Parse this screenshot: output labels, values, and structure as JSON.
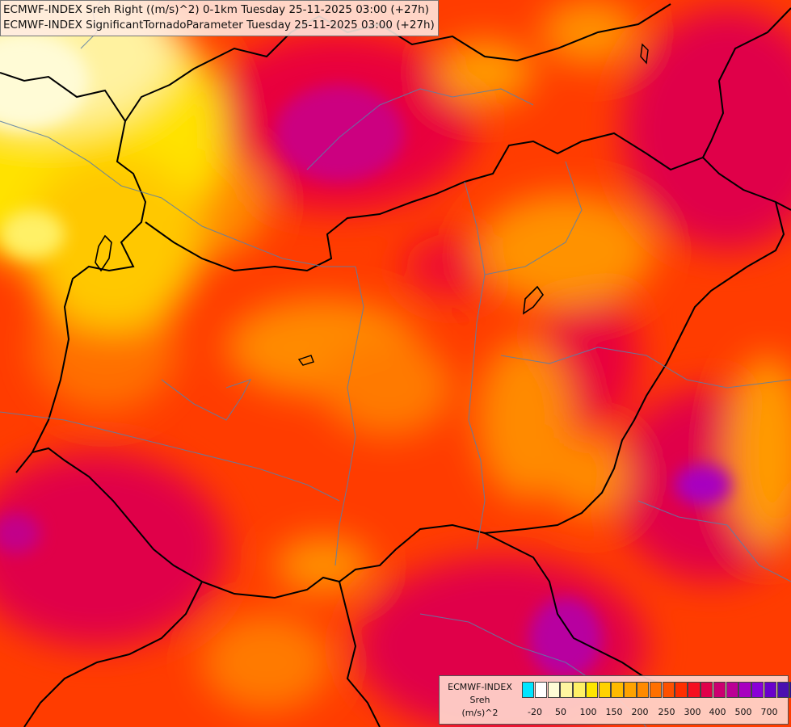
{
  "title": {
    "line1": "ECMWF-INDEX Sreh Right ((m/s)^2) 0-1km Tuesday 25-11-2025 03:00 (+27h)",
    "line2": "ECMWF-INDEX SignificantTornadoParameter Tuesday 25-11-2025 03:00 (+27h)"
  },
  "legend": {
    "title_line1": "ECMWF-INDEX",
    "title_line2": "Sreh",
    "title_line3": "(m/s)^2",
    "colors": [
      "#00e5ff",
      "#ffffff",
      "#fffbd6",
      "#fff5a0",
      "#fff066",
      "#ffe600",
      "#ffd200",
      "#ffba00",
      "#ffa200",
      "#ff8a00",
      "#ff7000",
      "#ff5000",
      "#ff2e00",
      "#f50e20",
      "#e0004a",
      "#cc0070",
      "#bb0095",
      "#a800c0",
      "#8a00d8",
      "#6a00cc",
      "#4a10b0",
      "#2a1090",
      "#101070"
    ],
    "tick_labels": [
      "-20",
      "50",
      "100",
      "150",
      "200",
      "250",
      "300",
      "400",
      "500",
      "700"
    ]
  },
  "chart_data": {
    "type": "heatmap",
    "title": "ECMWF-INDEX Sreh Right ((m/s)^2) 0-1km Tuesday 25-11-2025 03:00 (+27h)",
    "subtitle": "ECMWF-INDEX SignificantTornadoParameter Tuesday 25-11-2025 03:00 (+27h)",
    "variable": "Sreh",
    "units": "(m/s)^2",
    "scale_ticks": [
      -20,
      50,
      100,
      150,
      200,
      250,
      300,
      400,
      500,
      700
    ],
    "regions": [
      {
        "area": "north-west corner",
        "approx_value": 110
      },
      {
        "area": "north-central",
        "approx_value": 400
      },
      {
        "area": "central",
        "approx_value": 230
      },
      {
        "area": "east",
        "approx_value": 300
      },
      {
        "area": "south-east",
        "approx_value": 440
      },
      {
        "area": "south-west",
        "approx_value": 330
      }
    ]
  }
}
